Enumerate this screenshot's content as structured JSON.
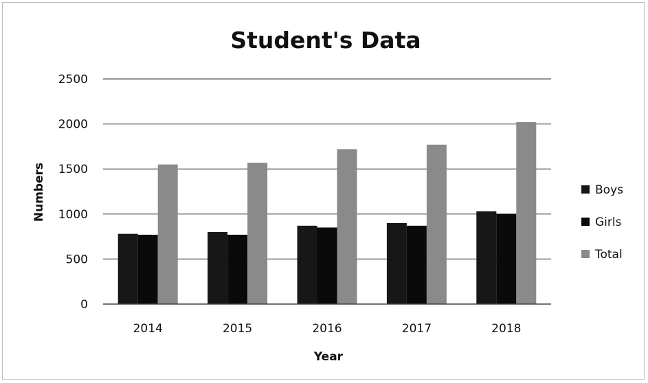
{
  "chart_data": {
    "type": "bar",
    "title": "Student's Data",
    "xlabel": "Year",
    "ylabel": "Numbers",
    "categories": [
      "2014",
      "2015",
      "2016",
      "2017",
      "2018"
    ],
    "series": [
      {
        "name": "Boys",
        "values": [
          780,
          800,
          870,
          900,
          1030
        ],
        "color": "#171717"
      },
      {
        "name": "Girls",
        "values": [
          770,
          770,
          850,
          870,
          1000
        ],
        "color": "#0a0a0a"
      },
      {
        "name": "Total",
        "values": [
          1550,
          1570,
          1720,
          1770,
          2020
        ],
        "color": "#8a8a8a"
      }
    ],
    "ylim": [
      0,
      2500
    ],
    "yticks": [
      "0",
      "500",
      "1000",
      "1500",
      "2000",
      "2500"
    ],
    "grid": true,
    "legend_position": "right"
  }
}
